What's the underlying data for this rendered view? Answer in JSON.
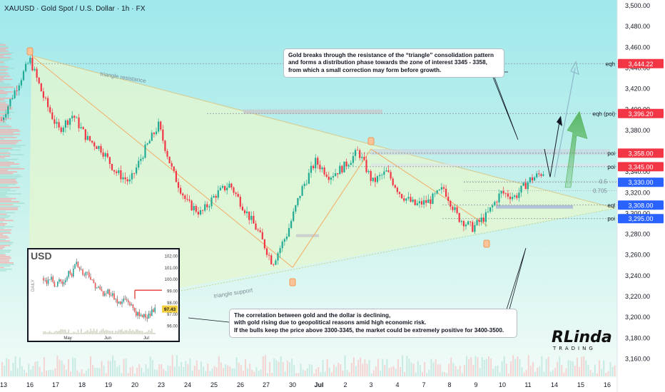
{
  "header": {
    "symbol_line": "XAUUSD · Gold Spot / U.S. Dollar · 1h · FX"
  },
  "notes": {
    "top": [
      "Gold breaks through the resistance of the “triangle” consolidation pattern",
      "and forms a distribution phase towards the zone of interest 3345 - 3358,",
      "from which a small correction may form before growth."
    ],
    "bottom": [
      "The correlation between gold and the dollar is declining,",
      "with gold rising due to geopolitical reasons amid high economic risk.",
      "If the bulls keep the price above 3300-3345, the market could be extremely positive for 3400-3500."
    ]
  },
  "logo": {
    "main": "RLinda",
    "sub": "TRADING"
  },
  "chart_data": {
    "type": "candlestick",
    "symbol": "XAUUSD",
    "timeframe": "1h",
    "ylim": [
      3150,
      3500
    ],
    "y_ticks": [
      3160,
      3180,
      3200,
      3220,
      3240,
      3260,
      3280,
      3300,
      3320,
      3340,
      3360,
      3380,
      3400,
      3420,
      3440,
      3460,
      3480,
      3500
    ],
    "y_tick_labels": [
      "3,160.00",
      "3,180.00",
      "3,200.00",
      "3,220.00",
      "3,240.00",
      "3,260.00",
      "3,280.00",
      "3,300.00",
      "3,320.00",
      "3,340.00",
      "3,360.00",
      "3,380.00",
      "3,400.00",
      "3,420.00",
      "3,440.00",
      "3,460.00",
      "3,480.00",
      "3,500.00"
    ],
    "x_ticks": [
      "13",
      "16",
      "17",
      "18",
      "19",
      "20",
      "23",
      "24",
      "25",
      "26",
      "27",
      "30",
      "Jul",
      "2",
      "3",
      "4",
      "7",
      "8",
      "9",
      "10",
      "11",
      "14",
      "15",
      "16"
    ],
    "price_path": [
      [
        0,
        3390
      ],
      [
        1,
        3420
      ],
      [
        2,
        3448
      ],
      [
        3,
        3410
      ],
      [
        4,
        3380
      ],
      [
        5,
        3395
      ],
      [
        6,
        3372
      ],
      [
        7,
        3362
      ],
      [
        8,
        3340
      ],
      [
        9,
        3330
      ],
      [
        10,
        3360
      ],
      [
        11,
        3385
      ],
      [
        12,
        3340
      ],
      [
        13,
        3310
      ],
      [
        14,
        3300
      ],
      [
        15,
        3318
      ],
      [
        16,
        3328
      ],
      [
        17,
        3305
      ],
      [
        18,
        3282
      ],
      [
        19,
        3252
      ],
      [
        20,
        3280
      ],
      [
        21,
        3322
      ],
      [
        22,
        3350
      ],
      [
        23,
        3336
      ],
      [
        24,
        3345
      ],
      [
        25,
        3360
      ],
      [
        26,
        3330
      ],
      [
        27,
        3340
      ],
      [
        28,
        3318
      ],
      [
        29,
        3308
      ],
      [
        30,
        3312
      ],
      [
        31,
        3324
      ],
      [
        32,
        3296
      ],
      [
        33,
        3286
      ],
      [
        34,
        3298
      ],
      [
        35,
        3320
      ],
      [
        36,
        3316
      ],
      [
        37,
        3332
      ],
      [
        38,
        3340
      ]
    ],
    "levels": [
      {
        "label": "eqh",
        "price": 3444.22,
        "price_label": "3,444.22",
        "color": "#f23645"
      },
      {
        "label": "eqh (poi)",
        "price": 3396.2,
        "price_label": "3,396.20",
        "color": "#f23645"
      },
      {
        "label": "poi",
        "price": 3358.0,
        "price_label": "3,358.00",
        "color": "#f23645"
      },
      {
        "label": "poi",
        "price": 3345.0,
        "price_label": "3,345.00",
        "color": "#f23645"
      },
      {
        "label": "",
        "price": 3330.0,
        "price_label": "3,330.00",
        "color": "#2962ff"
      },
      {
        "label": "eql",
        "price": 3308.0,
        "price_label": "3,308.00",
        "color": "#2962ff"
      },
      {
        "label": "poi",
        "price": 3295.0,
        "price_label": "3,295.00",
        "color": "#2962ff"
      }
    ],
    "fib_levels": [
      {
        "label": "0.5",
        "price": 3331
      },
      {
        "label": "0.705",
        "price": 3322
      }
    ],
    "annotations": [
      {
        "text": "triangle resistance"
      },
      {
        "text": "triangle support"
      }
    ]
  },
  "inset": {
    "title": "USD",
    "side_label": "DAILY",
    "last_value": "97.43",
    "y_ticks": [
      "102.00",
      "101.00",
      "100.00",
      "99.00",
      "98.00",
      "97.00",
      "96.00"
    ],
    "x_ticks": [
      "May",
      "Jun",
      "Jul"
    ],
    "series": [
      100.1,
      99.6,
      100.4,
      99.2,
      99.9,
      99.5,
      100.6,
      100.2,
      101.6,
      101.0,
      100.3,
      100.7,
      99.8,
      99.4,
      99.1,
      98.6,
      99.0,
      98.7,
      98.2,
      97.8,
      98.3,
      98.1,
      97.6,
      97.1,
      96.7,
      97.0,
      96.8,
      97.2,
      97.43
    ]
  }
}
